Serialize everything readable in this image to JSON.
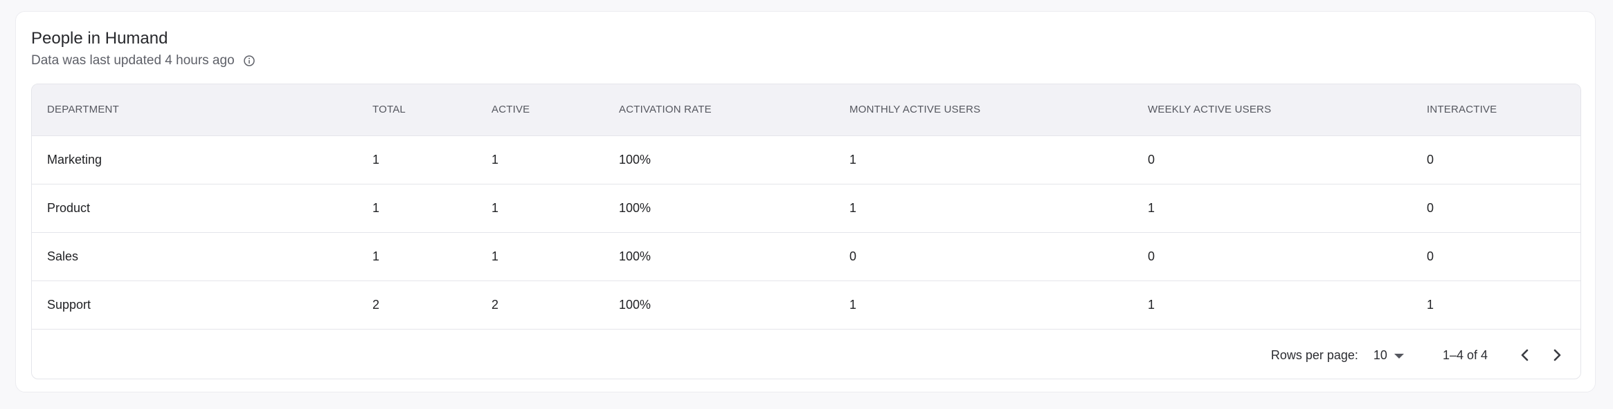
{
  "card": {
    "title": "People in Humand",
    "subtitle": "Data was last updated 4 hours ago",
    "info_icon": "info-icon"
  },
  "table": {
    "columns": [
      "DEPARTMENT",
      "TOTAL",
      "ACTIVE",
      "ACTIVATION RATE",
      "MONTHLY ACTIVE USERS",
      "WEEKLY ACTIVE USERS",
      "INTERACTIVE"
    ],
    "rows": [
      [
        "Marketing",
        "1",
        "1",
        "100%",
        "1",
        "0",
        "0"
      ],
      [
        "Product",
        "1",
        "1",
        "100%",
        "1",
        "1",
        "0"
      ],
      [
        "Sales",
        "1",
        "1",
        "100%",
        "0",
        "0",
        "0"
      ],
      [
        "Support",
        "2",
        "2",
        "100%",
        "1",
        "1",
        "1"
      ]
    ]
  },
  "pagination": {
    "rows_per_page_label": "Rows per page:",
    "rows_per_page_value": "10",
    "range": "1–4 of 4",
    "prev_icon": "chevron-left-icon",
    "next_icon": "chevron-right-icon"
  }
}
